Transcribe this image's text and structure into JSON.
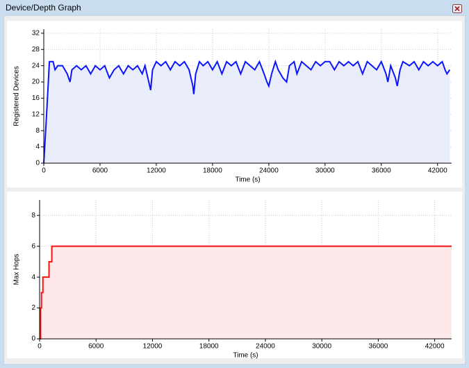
{
  "window": {
    "title": "Device/Depth Graph"
  },
  "chart_data": [
    {
      "type": "line",
      "y_label": "Registered Devices",
      "x_label": "Time (s)",
      "xlim": [
        0,
        43500
      ],
      "ylim": [
        0,
        33
      ],
      "xticks": [
        0,
        6000,
        12000,
        18000,
        24000,
        30000,
        36000,
        42000
      ],
      "yticks": [
        0,
        4,
        8,
        12,
        16,
        20,
        24,
        28,
        32
      ],
      "grid": true,
      "series": [
        {
          "color": "#0a14ff",
          "fill": "#e9ecfb",
          "x": [
            0,
            300,
            600,
            1000,
            1200,
            1500,
            2000,
            2500,
            2800,
            3000,
            3500,
            4000,
            4500,
            5000,
            5500,
            6000,
            6500,
            7000,
            7500,
            8000,
            8500,
            9000,
            9500,
            10000,
            10500,
            10800,
            11200,
            11400,
            11600,
            12000,
            12500,
            13000,
            13500,
            14000,
            14500,
            15000,
            15500,
            15900,
            16000,
            16200,
            16600,
            17000,
            17500,
            18000,
            18500,
            19000,
            19500,
            20000,
            20500,
            21000,
            21500,
            22000,
            22500,
            23000,
            23500,
            23800,
            24000,
            24300,
            24700,
            25000,
            25500,
            25900,
            26200,
            26700,
            27000,
            27500,
            28000,
            28500,
            29000,
            29500,
            30000,
            30500,
            31000,
            31500,
            32000,
            32500,
            33000,
            33500,
            34000,
            34500,
            35000,
            35500,
            36000,
            36500,
            36700,
            37000,
            37500,
            37700,
            38000,
            38300,
            39000,
            39500,
            40000,
            40500,
            41000,
            41500,
            42000,
            42500,
            42800,
            43000,
            43300
          ],
          "values": [
            0,
            12,
            25,
            25,
            23,
            24,
            24,
            22,
            20,
            23,
            24,
            23,
            24,
            22,
            24,
            23,
            24,
            21,
            23,
            24,
            22,
            24,
            23,
            24,
            22,
            24,
            20,
            18,
            23,
            25,
            24,
            25,
            23,
            25,
            24,
            25,
            23,
            19,
            17,
            22,
            25,
            24,
            25,
            23,
            25,
            22,
            25,
            24,
            25,
            22,
            25,
            24,
            23,
            25,
            22,
            20,
            19,
            22,
            25,
            23,
            21,
            20,
            24,
            25,
            22,
            25,
            24,
            23,
            25,
            24,
            25,
            25,
            23,
            25,
            24,
            25,
            24,
            25,
            22,
            25,
            24,
            23,
            25,
            22,
            20,
            24,
            21,
            19,
            23,
            25,
            24,
            25,
            23,
            25,
            24,
            25,
            24,
            25,
            23,
            22,
            23
          ]
        }
      ]
    },
    {
      "type": "line",
      "y_label": "Max Hops",
      "x_label": "Time (s)",
      "xlim": [
        0,
        43800
      ],
      "ylim": [
        0,
        9
      ],
      "xticks": [
        0,
        6000,
        12000,
        18000,
        24000,
        30000,
        36000,
        42000
      ],
      "yticks": [
        0,
        2,
        4,
        6,
        8
      ],
      "grid": true,
      "series": [
        {
          "color": "#ff1010",
          "fill": "#fde9e9",
          "x": [
            0,
            100,
            100,
            200,
            200,
            350,
            350,
            1000,
            1000,
            1300,
            1300,
            43800
          ],
          "values": [
            0,
            0,
            2,
            2,
            3,
            3,
            4,
            4,
            5,
            5,
            6,
            6
          ]
        }
      ]
    }
  ]
}
